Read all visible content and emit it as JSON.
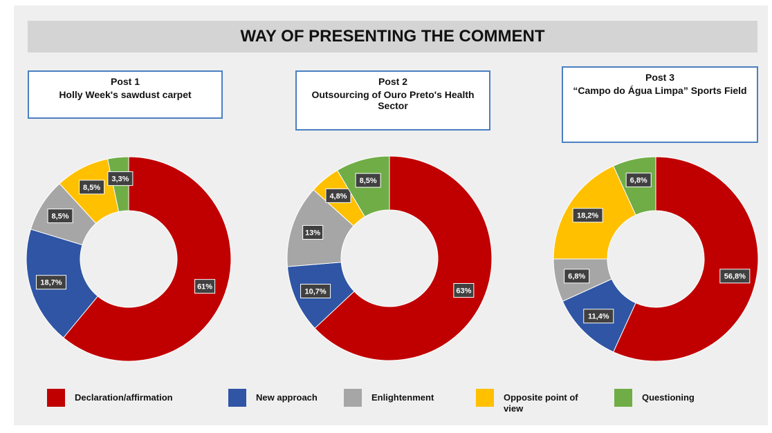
{
  "title": "WAY OF PRESENTING THE COMMENT",
  "chart_data": [
    {
      "type": "pie",
      "title": "Post 1",
      "subtitle": "Holly Week's sawdust carpet",
      "categories": [
        "Declaration/affirmation",
        "New approach",
        "Enlightenment",
        "Opposite point of view",
        "Questioning"
      ],
      "values": [
        61,
        18.7,
        8.5,
        8.5,
        3.3
      ],
      "value_labels": [
        "61%",
        "18,7%",
        "8,5%",
        "8,5%",
        "3,3%"
      ],
      "colors": [
        "#c00000",
        "#2f55a4",
        "#a6a6a6",
        "#ffc000",
        "#70ad47"
      ]
    },
    {
      "type": "pie",
      "title": "Post 2",
      "subtitle": "Outsourcing of Ouro Preto's Health Sector",
      "categories": [
        "Declaration/affirmation",
        "New approach",
        "Enlightenment",
        "Opposite point of view",
        "Questioning"
      ],
      "values": [
        63,
        10.7,
        13,
        4.8,
        8.5
      ],
      "value_labels": [
        "63%",
        "10,7%",
        "13%",
        "4,8%",
        "8,5%"
      ],
      "colors": [
        "#c00000",
        "#2f55a4",
        "#a6a6a6",
        "#ffc000",
        "#70ad47"
      ]
    },
    {
      "type": "pie",
      "title": "Post 3",
      "subtitle": "“Campo do Água Limpa” Sports Field",
      "categories": [
        "Declaration/affirmation",
        "New approach",
        "Enlightenment",
        "Opposite point of view",
        "Questioning"
      ],
      "values": [
        56.8,
        11.4,
        6.8,
        18.2,
        6.8
      ],
      "value_labels": [
        "56,8%",
        "11,4%",
        "6,8%",
        "18,2%",
        "6,8%"
      ],
      "colors": [
        "#c00000",
        "#2f55a4",
        "#a6a6a6",
        "#ffc000",
        "#70ad47"
      ]
    }
  ]
}
